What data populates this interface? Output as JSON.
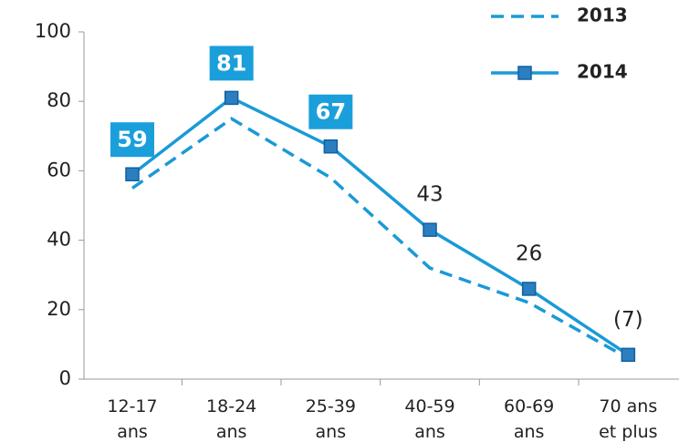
{
  "chart_data": {
    "type": "line",
    "categories": [
      "12-17\nans",
      "18-24\nans",
      "25-39\nans",
      "40-59\nans",
      "60-69\nans",
      "70 ans\net plus"
    ],
    "series": [
      {
        "name": "2013",
        "color": "#1a9ad6",
        "dashed": true,
        "markers": false,
        "values": [
          55,
          75,
          58,
          32,
          22,
          6
        ]
      },
      {
        "name": "2014",
        "color": "#1a9ad6",
        "dashed": false,
        "markers": true,
        "values": [
          59,
          81,
          67,
          43,
          26,
          7
        ],
        "value_labels": [
          "59",
          "81",
          "67",
          "43",
          "26",
          "(7)"
        ],
        "boxed_labels": [
          true,
          true,
          true,
          false,
          false,
          false
        ]
      }
    ],
    "ylim": [
      0,
      100
    ],
    "yticks": [
      0,
      20,
      40,
      60,
      80,
      100
    ],
    "grid": false,
    "legend": "top-right"
  }
}
